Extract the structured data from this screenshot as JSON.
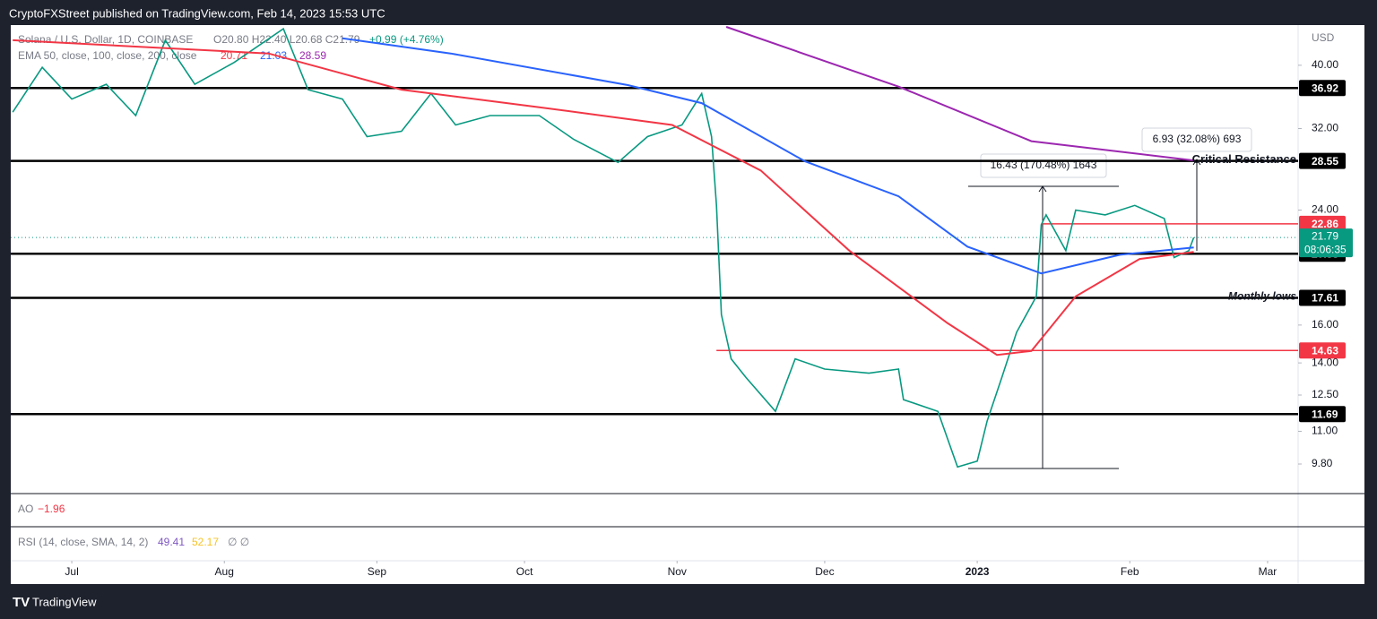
{
  "chart_data": {
    "type": "line",
    "publisher": "CryptoFXStreet published on TradingView.com, Feb 14, 2023 15:53 UTC",
    "symbol": "Solana / U.S. Dollar, 1D, COINBASE",
    "ohlc": "O20.80 H22.40 L20.68 C21.79",
    "change": "+0.99 (+4.76%)",
    "ema_legend": "EMA 50, close, 100, close, 200, close",
    "currency": "USD",
    "countdown": "08:06:35",
    "brand": "TradingView",
    "log_scale": true,
    "grid": false,
    "xlim": [
      -12.4,
      249.2
    ],
    "ylim": [
      8.83,
      45.8
    ],
    "xticks": [
      {
        "value": 0,
        "label": "Jul"
      },
      {
        "value": 31,
        "label": "Aug"
      },
      {
        "value": 62,
        "label": "Sep"
      },
      {
        "value": 92,
        "label": "Oct"
      },
      {
        "value": 123,
        "label": "Nov"
      },
      {
        "value": 153,
        "label": "Dec"
      },
      {
        "value": 184,
        "label": "2023"
      },
      {
        "value": 215,
        "label": "Feb"
      },
      {
        "value": 243,
        "label": "Mar"
      }
    ],
    "yticks": [
      {
        "value": 9.8,
        "label": "9.80"
      },
      {
        "value": 11,
        "label": "11.00"
      },
      {
        "value": 12.5,
        "label": "12.50"
      },
      {
        "value": 14,
        "label": "14.00"
      },
      {
        "value": 16,
        "label": "16.00"
      },
      {
        "value": 24,
        "label": "24.00"
      },
      {
        "value": 32,
        "label": "32.00"
      },
      {
        "value": 40,
        "label": "40.00"
      }
    ],
    "series": [
      {
        "color": "#089981",
        "x": [
          -12,
          -6,
          0,
          7,
          13,
          19,
          25,
          33,
          43,
          48,
          55,
          60,
          67,
          73,
          78,
          85,
          95,
          102,
          111,
          117,
          124,
          128,
          130,
          131,
          132,
          134,
          137,
          143,
          147,
          153,
          162,
          168,
          169,
          176,
          180,
          184,
          186,
          189,
          192,
          196,
          197,
          198,
          202,
          204,
          210,
          216,
          222,
          224,
          227,
          228
        ],
        "values": [
          33.9,
          39.7,
          35.5,
          37.4,
          33.5,
          43.7,
          37.4,
          40.4,
          45.5,
          36.7,
          35.5,
          31.1,
          31.7,
          36.2,
          32.4,
          33.5,
          33.5,
          30.8,
          28.4,
          31.1,
          32.4,
          36.2,
          31.1,
          24.4,
          16.6,
          14.2,
          13.3,
          11.8,
          14.2,
          13.7,
          13.5,
          13.7,
          12.3,
          11.8,
          9.7,
          9.9,
          11.4,
          13.3,
          15.6,
          17.7,
          22.8,
          23.6,
          20.8,
          24.0,
          23.6,
          24.4,
          23.3,
          20.3,
          20.8,
          21.79
        ]
      },
      {
        "color": "#f23645",
        "x": [
          -12,
          40,
          67,
          95,
          122,
          140,
          158,
          178,
          188,
          195,
          204,
          217,
          228
        ],
        "values": [
          43.7,
          41.7,
          36.7,
          34.5,
          32.4,
          27.6,
          20.8,
          16.1,
          14.4,
          14.6,
          17.7,
          20.2,
          20.71
        ]
      },
      {
        "color": "#2962ff",
        "x": [
          55,
          77,
          113,
          128,
          149,
          168,
          182,
          197,
          213,
          228
        ],
        "values": [
          44.0,
          41.7,
          37.3,
          35.0,
          28.5,
          25.2,
          21.1,
          19.2,
          20.5,
          21.03
        ]
      },
      {
        "color": "#9c27b0",
        "x": [
          133,
          168,
          195,
          228
        ],
        "values": [
          45.8,
          37.1,
          30.6,
          28.59
        ]
      }
    ],
    "levels": [
      {
        "value": 36.92,
        "color": "#000000"
      },
      {
        "value": 28.55,
        "color": "#000000",
        "note": "Critical Resistance"
      },
      {
        "value": 22.86,
        "color": "#f23645",
        "start": 197
      },
      {
        "value": 20.58,
        "color": "#000000"
      },
      {
        "value": 17.61,
        "color": "#000000",
        "note": "Monthly lows"
      },
      {
        "value": 14.63,
        "color": "#f23645",
        "start": 131
      },
      {
        "value": 11.69,
        "color": "#000000"
      }
    ],
    "measures": [
      "16.43 (170.48%) 1643",
      "6.93 (32.08%) 693"
    ],
    "ao": {
      "name": "AO",
      "value": {
        "value": -1.96,
        "label": "−1.96"
      }
    },
    "rsi": {
      "name": "RSI (14, close, SMA, 14, 2)",
      "values": [
        49.41,
        52.17
      ],
      "colors": [
        "#7e57c2",
        "#f7c325"
      ],
      "extra": "∅ ∅"
    }
  }
}
